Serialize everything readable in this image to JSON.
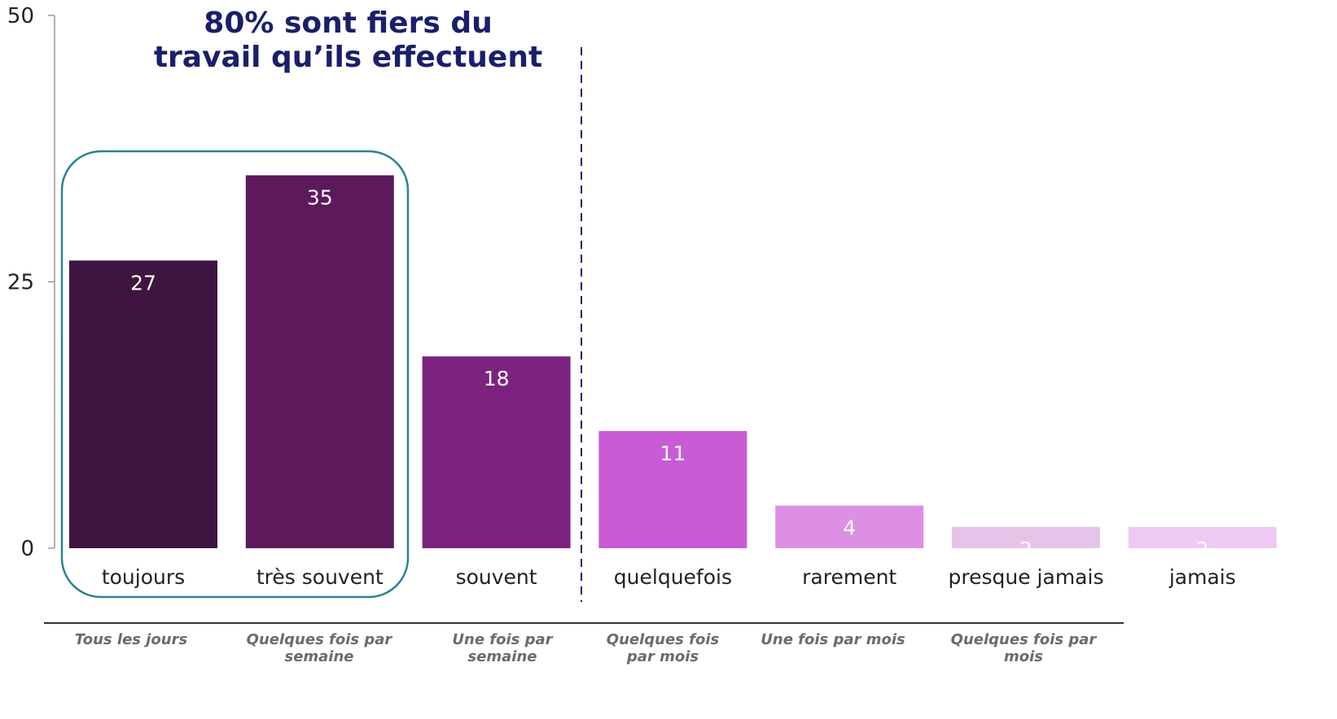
{
  "chart_data": {
    "type": "bar",
    "title": "80% sont fiers du travail qu’ils effectuent",
    "title_lines": [
      "80% sont fiers du",
      "travail qu’ils effectuent"
    ],
    "categories": [
      "toujours",
      "très souvent",
      "souvent",
      "quelquefois",
      "rarement",
      "presque jamais",
      "jamais"
    ],
    "values": [
      27,
      35,
      18,
      11,
      4,
      2,
      2
    ],
    "colors": [
      "#3d1540",
      "#5c1a5c",
      "#7b237e",
      "#c95bd6",
      "#dd90e3",
      "#e6c4ea",
      "#eecaf2"
    ],
    "ylim": [
      0,
      50
    ],
    "yticks": [
      0,
      25,
      50
    ],
    "highlight_categories": [
      "toujours",
      "très souvent"
    ],
    "frequency_labels": [
      [
        "Tous les jours"
      ],
      [
        "Quelques fois par",
        "semaine"
      ],
      [
        "Une fois par",
        "semaine"
      ],
      [
        "Quelques fois",
        "par mois"
      ],
      [
        "Une fois par mois"
      ],
      [
        "Quelques fois par",
        "mois"
      ]
    ],
    "grid": false,
    "legend": "none"
  }
}
